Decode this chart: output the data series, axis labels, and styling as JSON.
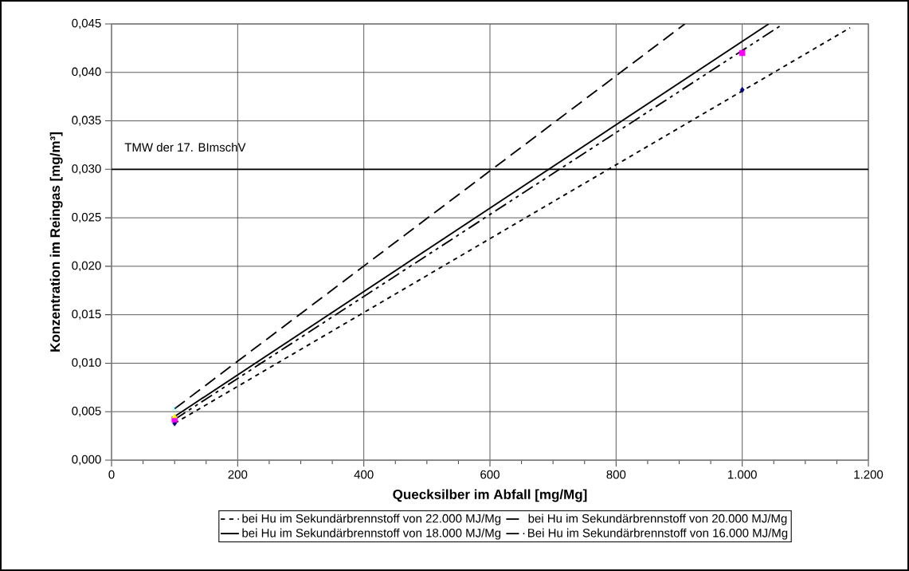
{
  "chart_data": {
    "type": "line",
    "xlabel": "Quecksilber im Abfall [mg/Mg]",
    "ylabel": "Konzentration im Reingas [mg/m³]",
    "xlim": [
      0,
      1200
    ],
    "ylim": [
      0,
      0.045
    ],
    "xticks": [
      0,
      200,
      400,
      600,
      800,
      {
        "value": 1000,
        "label": "1.000"
      },
      {
        "value": 1200,
        "label": "1.200"
      }
    ],
    "yticks": [
      {
        "value": 0,
        "label": "0,000"
      },
      {
        "value": 0.005,
        "label": "0,005"
      },
      {
        "value": 0.01,
        "label": "0,010"
      },
      {
        "value": 0.015,
        "label": "0,015"
      },
      {
        "value": 0.02,
        "label": "0,020"
      },
      {
        "value": 0.025,
        "label": "0,025"
      },
      {
        "value": 0.03,
        "label": "0,030"
      },
      {
        "value": 0.035,
        "label": "0,035"
      },
      {
        "value": 0.04,
        "label": "0,040"
      },
      {
        "value": 0.045,
        "label": "0,045"
      }
    ],
    "grid": true,
    "legend": "bottom",
    "ref_lines": [
      {
        "axis": "y",
        "value": 0.03,
        "label": "TMW der 17. BImschV",
        "color": "#000000"
      }
    ],
    "series": [
      {
        "name": "bei Hu im Sekundärbrennstoff von 22.000 MJ/Mg",
        "color": "#000000",
        "line_style": "dotted",
        "x": [
          100,
          1171
        ],
        "values": [
          0.0038,
          0.0446
        ]
      },
      {
        "name": "bei Hu im Sekundärbrennstoff von 20.000 MJ/Mg",
        "color": "#000000",
        "line_style": "dashed",
        "x": [
          100,
          909
        ],
        "values": [
          0.0053,
          0.045
        ]
      },
      {
        "name": "bei Hu im Sekundärbrennstoff von 18.000 MJ/Mg",
        "color": "#000000",
        "line_style": "solid",
        "x": [
          100,
          1042
        ],
        "values": [
          0.0045,
          0.045
        ]
      },
      {
        "name": "Bei Hu im Sekundärbrennstoff von 16.000 MJ/Mg",
        "color": "#000000",
        "line_style": "dashdotdotted",
        "x": [
          100,
          1065
        ],
        "values": [
          0.0042,
          0.045
        ]
      },
      {
        "type": "scatter",
        "color": "#000080",
        "marker": "diamond",
        "x": [
          100,
          1000
        ],
        "values": [
          0.0038,
          0.0382
        ]
      },
      {
        "type": "scatter",
        "color": "#ff00ff",
        "marker": "square",
        "x": [
          100,
          1000
        ],
        "values": [
          0.0042,
          0.042
        ]
      },
      {
        "type": "scatter",
        "color": "#ffff00",
        "marker": "triangle",
        "x": [
          100
        ],
        "values": [
          0.0045
        ]
      },
      {
        "type": "scatter",
        "color": "#00ffff",
        "marker": "cross",
        "x": [
          100
        ],
        "values": [
          0.0053
        ]
      }
    ]
  }
}
